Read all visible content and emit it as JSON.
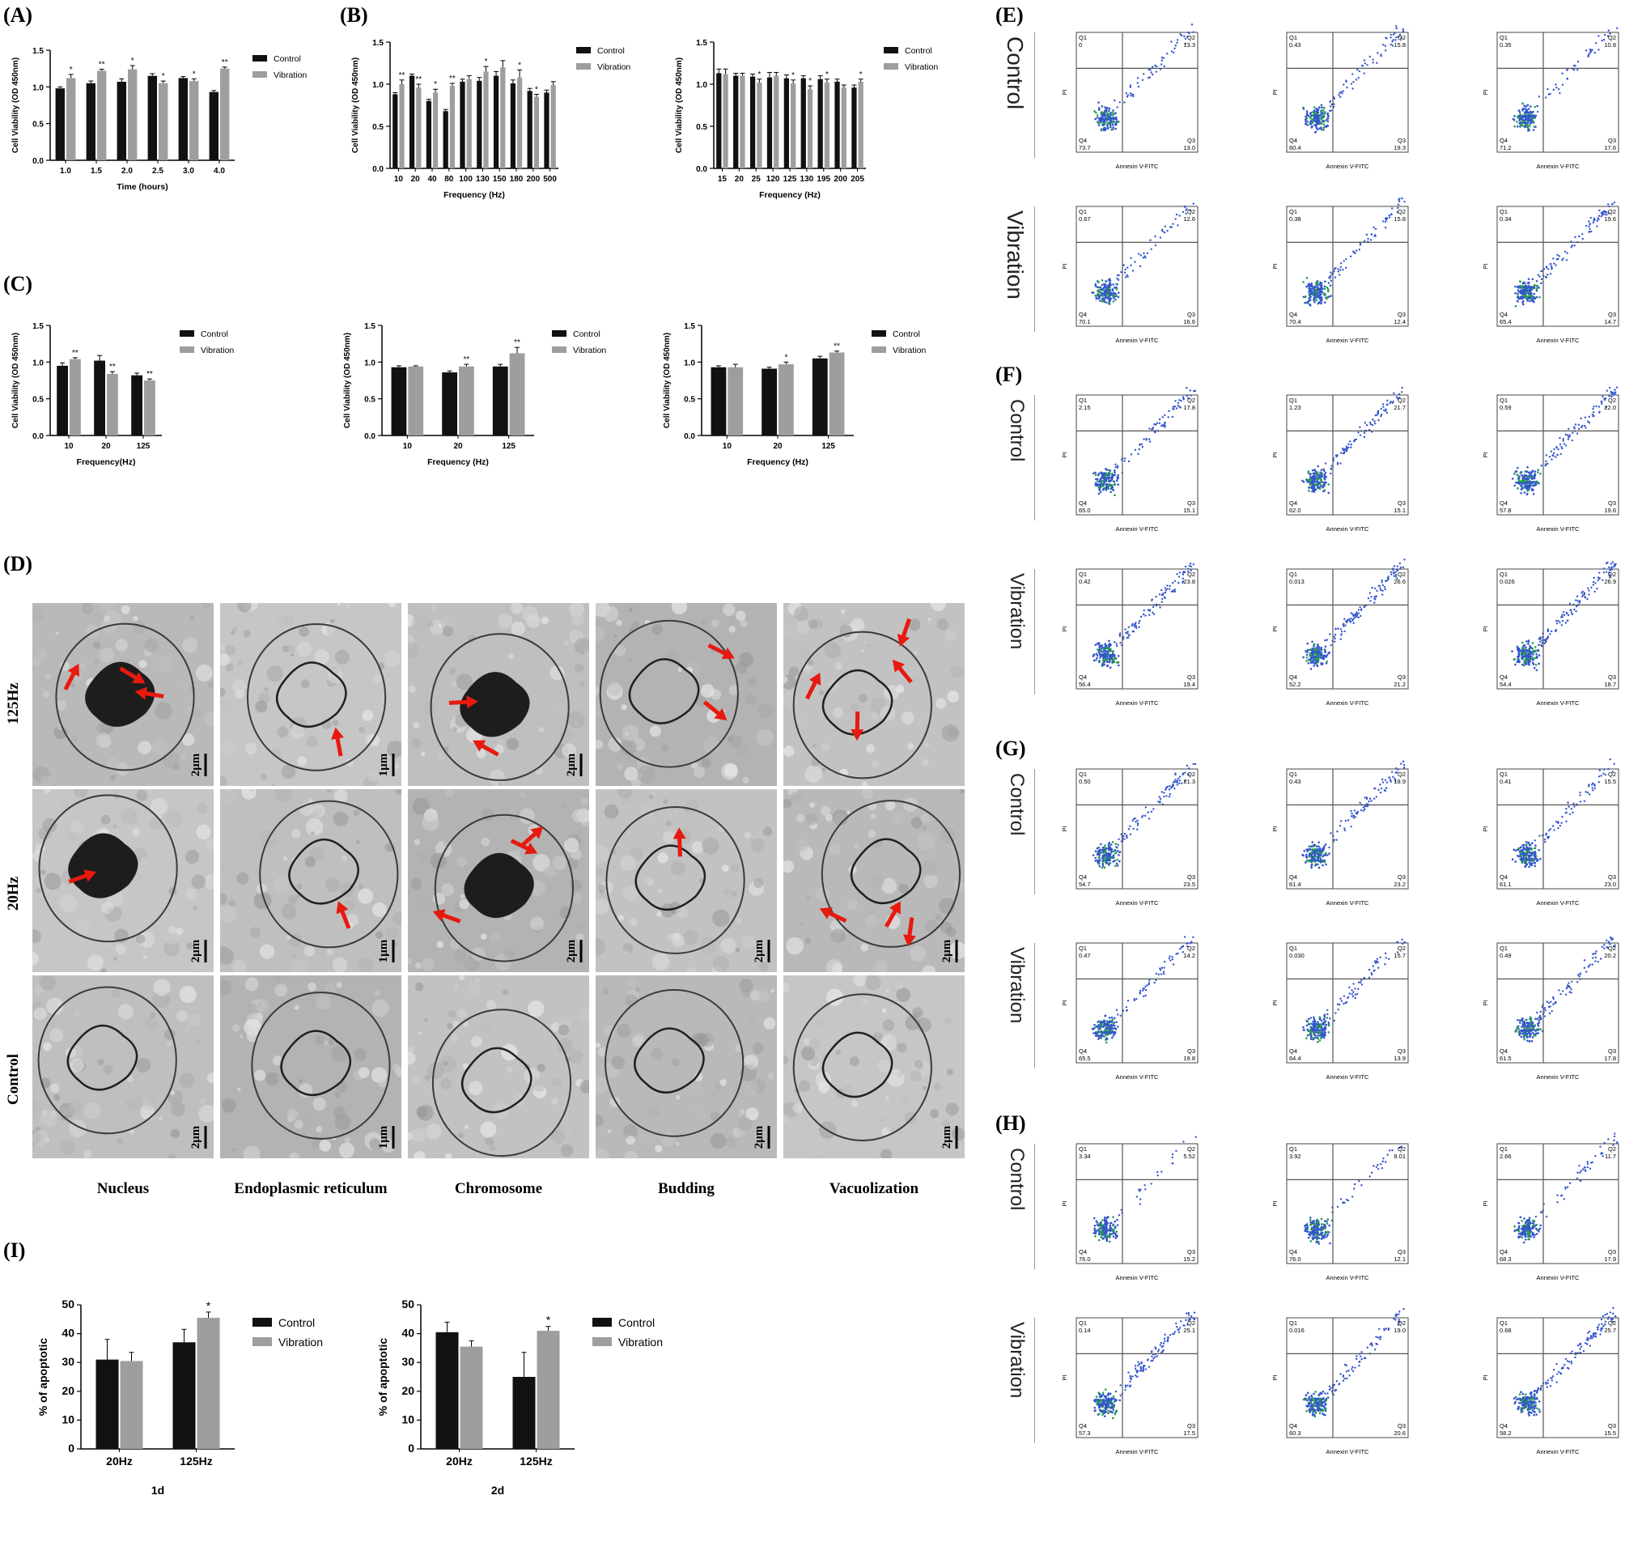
{
  "panels": {
    "A": "(A)",
    "B": "(B)",
    "C": "(C)",
    "D": "(D)",
    "E": "(E)",
    "F": "(F)",
    "G": "(G)",
    "H": "(H)",
    "I": "(I)"
  },
  "legend": {
    "control": "Control",
    "vibration": "Vibration"
  },
  "colors": {
    "control": "#111111",
    "vibration": "#9e9e9e",
    "arrow": "#e8190f",
    "dot_blue": "#3355cc",
    "dot_core": "#26a047"
  },
  "chart_data": [
    {
      "id": "A",
      "type": "bar",
      "title": "",
      "xlabel": "Time (hours)",
      "ylabel": "Cell Viability (OD 450nm)",
      "ylim": [
        0,
        1.5
      ],
      "yticks": [
        "0.0",
        "0.5",
        "1.0",
        "1.5"
      ],
      "categories": [
        "1.0",
        "1.5",
        "2.0",
        "2.5",
        "3.0",
        "4.0"
      ],
      "series": [
        {
          "name": "Control",
          "values": [
            0.98,
            1.05,
            1.07,
            1.15,
            1.12,
            0.93
          ],
          "err": [
            0.02,
            0.03,
            0.04,
            0.03,
            0.02,
            0.02
          ]
        },
        {
          "name": "Vibration",
          "values": [
            1.12,
            1.22,
            1.24,
            1.05,
            1.08,
            1.25
          ],
          "err": [
            0.05,
            0.02,
            0.05,
            0.03,
            0.03,
            0.02
          ]
        }
      ],
      "sig": [
        "*",
        "**",
        "*",
        "*",
        "*",
        "**"
      ]
    },
    {
      "id": "B1",
      "type": "bar",
      "title": "",
      "xlabel": "Frequency (Hz)",
      "ylabel": "Cell Viability (OD 450nm)",
      "ylim": [
        0,
        1.5
      ],
      "yticks": [
        "0.0",
        "0.5",
        "1.0",
        "1.5"
      ],
      "categories": [
        "10",
        "20",
        "40",
        "80",
        "100",
        "130",
        "150",
        "180",
        "200",
        "500"
      ],
      "series": [
        {
          "name": "Control",
          "values": [
            0.88,
            1.1,
            0.8,
            0.68,
            1.03,
            1.04,
            1.1,
            1.01,
            0.92,
            0.9
          ],
          "err": [
            0.02,
            0.02,
            0.02,
            0.02,
            0.03,
            0.04,
            0.05,
            0.04,
            0.03,
            0.03
          ]
        },
        {
          "name": "Vibration",
          "values": [
            1.0,
            0.96,
            0.9,
            0.98,
            1.06,
            1.15,
            1.2,
            1.08,
            0.85,
            0.99
          ],
          "err": [
            0.05,
            0.04,
            0.04,
            0.03,
            0.04,
            0.06,
            0.08,
            0.09,
            0.03,
            0.04
          ]
        }
      ],
      "sig": [
        "**",
        "**",
        "*",
        "**",
        "",
        "*",
        "",
        "*",
        "*",
        ""
      ]
    },
    {
      "id": "B2",
      "type": "bar",
      "title": "",
      "xlabel": "Frequency (Hz)",
      "ylabel": "Cell Viability (OD 450nm)",
      "ylim": [
        0,
        1.5
      ],
      "yticks": [
        "0.0",
        "0.5",
        "1.0",
        "1.5"
      ],
      "categories": [
        "15",
        "20",
        "25",
        "120",
        "125",
        "130",
        "195",
        "200",
        "205"
      ],
      "series": [
        {
          "name": "Control",
          "values": [
            1.13,
            1.1,
            1.09,
            1.08,
            1.07,
            1.07,
            1.06,
            1.03,
            0.96
          ],
          "err": [
            0.05,
            0.03,
            0.03,
            0.06,
            0.04,
            0.03,
            0.04,
            0.03,
            0.03
          ]
        },
        {
          "name": "Vibration",
          "values": [
            1.12,
            1.1,
            1.02,
            1.1,
            1.01,
            0.94,
            1.02,
            0.96,
            1.03
          ],
          "err": [
            0.06,
            0.03,
            0.04,
            0.04,
            0.04,
            0.04,
            0.04,
            0.03,
            0.03
          ]
        }
      ],
      "sig": [
        "",
        "",
        "*",
        "",
        "*",
        "*",
        "*",
        "",
        "*"
      ]
    },
    {
      "id": "C1",
      "type": "bar",
      "title": "",
      "xlabel": "Frequency(Hz)",
      "ylabel": "Cell Viability (OD 450nm)",
      "ylim": [
        0,
        1.5
      ],
      "yticks": [
        "0.0",
        "0.5",
        "1.0",
        "1.5"
      ],
      "categories": [
        "10",
        "20",
        "125"
      ],
      "series": [
        {
          "name": "Control",
          "values": [
            0.95,
            1.02,
            0.82
          ],
          "err": [
            0.04,
            0.07,
            0.03
          ]
        },
        {
          "name": "Vibration",
          "values": [
            1.04,
            0.84,
            0.75
          ],
          "err": [
            0.02,
            0.03,
            0.02
          ]
        }
      ],
      "sig": [
        "**",
        "**",
        "**"
      ]
    },
    {
      "id": "C2",
      "type": "bar",
      "title": "",
      "xlabel": "Frequency (Hz)",
      "ylabel": "Cell Viability (OD 450nm)",
      "ylim": [
        0,
        1.5
      ],
      "yticks": [
        "0.0",
        "0.5",
        "1.0",
        "1.5"
      ],
      "categories": [
        "10",
        "20",
        "125"
      ],
      "series": [
        {
          "name": "Control",
          "values": [
            0.93,
            0.86,
            0.94
          ],
          "err": [
            0.02,
            0.02,
            0.03
          ]
        },
        {
          "name": "Vibration",
          "values": [
            0.94,
            0.94,
            1.12
          ],
          "err": [
            0.01,
            0.03,
            0.08
          ]
        }
      ],
      "sig": [
        "",
        "**",
        "**"
      ]
    },
    {
      "id": "C3",
      "type": "bar",
      "title": "",
      "xlabel": "Frequency (Hz)",
      "ylabel": "Cell Viability (OD 450nm)",
      "ylim": [
        0,
        1.5
      ],
      "yticks": [
        "0.0",
        "0.5",
        "1.0",
        "1.5"
      ],
      "categories": [
        "10",
        "20",
        "125"
      ],
      "series": [
        {
          "name": "Control",
          "values": [
            0.93,
            0.91,
            1.05
          ],
          "err": [
            0.02,
            0.02,
            0.03
          ]
        },
        {
          "name": "Vibration",
          "values": [
            0.93,
            0.97,
            1.13
          ],
          "err": [
            0.04,
            0.03,
            0.02
          ]
        }
      ],
      "sig": [
        "",
        "*",
        "**"
      ]
    },
    {
      "id": "I1",
      "type": "bar",
      "title": "",
      "xlabel": "1d",
      "ylabel": "% of apoptotic",
      "ylim": [
        0,
        50
      ],
      "yticks": [
        "0",
        "10",
        "20",
        "30",
        "40",
        "50"
      ],
      "categories": [
        "20Hz",
        "125Hz"
      ],
      "series": [
        {
          "name": "Control",
          "values": [
            31,
            37
          ],
          "err": [
            7,
            4.5
          ]
        },
        {
          "name": "Vibration",
          "values": [
            30.5,
            45.5
          ],
          "err": [
            3,
            2
          ]
        }
      ],
      "sig": [
        "",
        "*"
      ]
    },
    {
      "id": "I2",
      "type": "bar",
      "title": "",
      "xlabel": "2d",
      "ylabel": "% of apoptotic",
      "ylim": [
        0,
        50
      ],
      "yticks": [
        "0",
        "10",
        "20",
        "30",
        "40",
        "50"
      ],
      "categories": [
        "20Hz",
        "125Hz"
      ],
      "series": [
        {
          "name": "Control",
          "values": [
            40.5,
            25
          ],
          "err": [
            3.5,
            8.5
          ]
        },
        {
          "name": "Vibration",
          "values": [
            35.5,
            41
          ],
          "err": [
            2,
            1.5
          ]
        }
      ],
      "sig": [
        "",
        "*"
      ]
    }
  ],
  "tem": {
    "rows": [
      "125Hz",
      "20Hz",
      "Control"
    ],
    "cols": [
      "Nucleus",
      "Endoplasmic reticulum",
      "Chromosome",
      "Budding",
      "Vacuolization"
    ],
    "scale_bars": [
      [
        "2μm",
        "1μm",
        "2μm",
        "",
        ""
      ],
      [
        "2μm",
        "1μm",
        "2μm",
        "2μm",
        "2μm"
      ],
      [
        "2μm",
        "1μm",
        "",
        "2μm",
        "2μm"
      ]
    ]
  },
  "flow": {
    "xlabel": "Annexin V-FITC",
    "ylabel": "PI",
    "quadrant_names": [
      "Q1",
      "Q2",
      "Q3",
      "Q4"
    ],
    "groups": [
      {
        "panel": "E",
        "conditions": [
          {
            "label": "Control",
            "plots": [
              {
                "q1": "0",
                "q2": "13.3",
                "q3": "13.0",
                "q4": "73.7"
              },
              {
                "q1": "0.43",
                "q2": "15.8",
                "q3": "19.3",
                "q4": "60.4"
              },
              {
                "q1": "0.35",
                "q2": "10.8",
                "q3": "17.6",
                "q4": "71.2"
              }
            ]
          },
          {
            "label": "Vibration",
            "plots": [
              {
                "q1": "0.67",
                "q2": "12.6",
                "q3": "16.6",
                "q4": "70.1"
              },
              {
                "q1": "0.38",
                "q2": "15.8",
                "q3": "12.4",
                "q4": "70.4"
              },
              {
                "q1": "0.34",
                "q2": "19.6",
                "q3": "14.7",
                "q4": "65.4"
              }
            ]
          }
        ]
      },
      {
        "panel": "F",
        "conditions": [
          {
            "label": "Control",
            "plots": [
              {
                "q1": "2.15",
                "q2": "17.8",
                "q3": "15.1",
                "q4": "65.0"
              },
              {
                "q1": "1.23",
                "q2": "21.7",
                "q3": "15.1",
                "q4": "62.0"
              },
              {
                "q1": "0.59",
                "q2": "22.0",
                "q3": "19.6",
                "q4": "57.8"
              }
            ]
          },
          {
            "label": "Vibration",
            "plots": [
              {
                "q1": "0.42",
                "q2": "23.8",
                "q3": "19.4",
                "q4": "56.4"
              },
              {
                "q1": "0.013",
                "q2": "26.6",
                "q3": "21.2",
                "q4": "52.2"
              },
              {
                "q1": "0.026",
                "q2": "26.9",
                "q3": "18.7",
                "q4": "54.4"
              }
            ]
          }
        ]
      },
      {
        "panel": "G",
        "conditions": [
          {
            "label": "Control",
            "plots": [
              {
                "q1": "0.50",
                "q2": "21.3",
                "q3": "23.5",
                "q4": "54.7"
              },
              {
                "q1": "0.43",
                "q2": "18.9",
                "q3": "23.2",
                "q4": "61.4"
              },
              {
                "q1": "0.41",
                "q2": "15.5",
                "q3": "23.0",
                "q4": "61.1"
              }
            ]
          },
          {
            "label": "Vibration",
            "plots": [
              {
                "q1": "0.47",
                "q2": "14.2",
                "q3": "19.8",
                "q4": "65.5"
              },
              {
                "q1": "0.030",
                "q2": "15.7",
                "q3": "13.9",
                "q4": "64.4"
              },
              {
                "q1": "0.49",
                "q2": "20.2",
                "q3": "17.8",
                "q4": "61.5"
              }
            ]
          }
        ]
      },
      {
        "panel": "H",
        "conditions": [
          {
            "label": "Control",
            "plots": [
              {
                "q1": "3.34",
                "q2": "5.52",
                "q3": "15.2",
                "q4": "76.0"
              },
              {
                "q1": "3.92",
                "q2": "8.01",
                "q3": "12.1",
                "q4": "76.0"
              },
              {
                "q1": "2.66",
                "q2": "11.7",
                "q3": "17.9",
                "q4": "68.3"
              }
            ]
          },
          {
            "label": "Vibration",
            "plots": [
              {
                "q1": "0.14",
                "q2": "25.1",
                "q3": "17.5",
                "q4": "57.3"
              },
              {
                "q1": "0.016",
                "q2": "19.0",
                "q3": "20.6",
                "q4": "60.3"
              },
              {
                "q1": "0.68",
                "q2": "25.7",
                "q3": "15.5",
                "q4": "58.2"
              }
            ]
          }
        ]
      }
    ]
  }
}
